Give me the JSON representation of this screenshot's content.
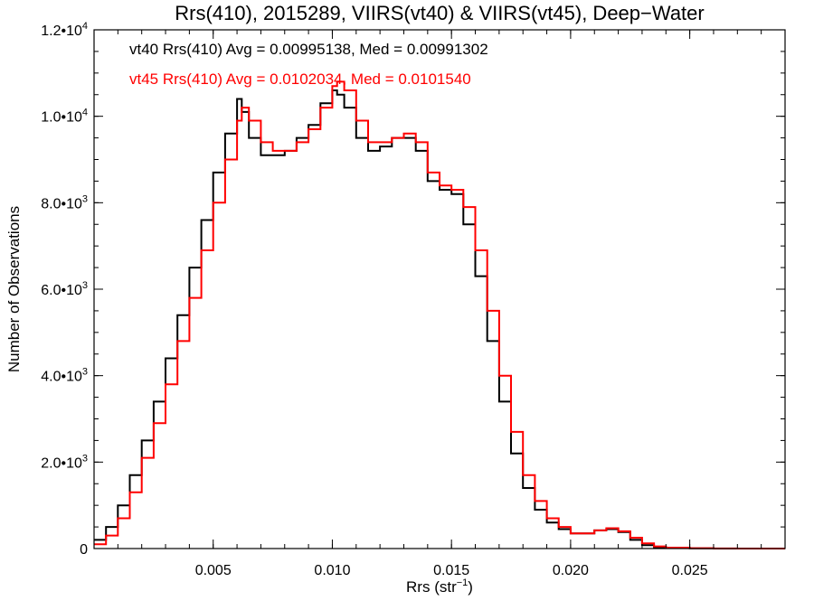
{
  "chart_data": {
    "type": "line",
    "title": "Rrs(410), 2015289, VIIRS(vt40) & VIIRS(vt45), Deep−Water",
    "xlabel": "Rrs (str",
    "xlabel_sup": "−1",
    "xlabel_close": ")",
    "ylabel": "Number of Observations",
    "xlim": [
      0.0,
      0.029
    ],
    "ylim": [
      0,
      12000
    ],
    "grid": false,
    "x_ticks": [
      {
        "value": 0.005,
        "label": "0.005"
      },
      {
        "value": 0.01,
        "label": "0.010"
      },
      {
        "value": 0.015,
        "label": "0.015"
      },
      {
        "value": 0.02,
        "label": "0.020"
      },
      {
        "value": 0.025,
        "label": "0.025"
      }
    ],
    "y_ticks": [
      {
        "value": 0,
        "mant": "0",
        "exp": ""
      },
      {
        "value": 2000,
        "mant": "2.0•10",
        "exp": "3"
      },
      {
        "value": 4000,
        "mant": "4.0•10",
        "exp": "3"
      },
      {
        "value": 6000,
        "mant": "6.0•10",
        "exp": "3"
      },
      {
        "value": 8000,
        "mant": "8.0•10",
        "exp": "3"
      },
      {
        "value": 10000,
        "mant": "1.0•10",
        "exp": "4"
      },
      {
        "value": 12000,
        "mant": "1.2•10",
        "exp": "4"
      }
    ],
    "annotations": [
      {
        "text": "vt40 Rrs(410) Avg = 0.00995138, Med = 0.00991302",
        "color": "#000000"
      },
      {
        "text": "vt45 Rrs(410) Avg = 0.0102034, Med = 0.0101540",
        "color": "#ff0000"
      }
    ],
    "series": [
      {
        "color": "#000000",
        "x": [
          0.0,
          0.0005,
          0.001,
          0.0015,
          0.002,
          0.0025,
          0.003,
          0.0035,
          0.004,
          0.0045,
          0.005,
          0.0055,
          0.006,
          0.0062,
          0.0065,
          0.007,
          0.0075,
          0.008,
          0.0085,
          0.009,
          0.0095,
          0.01,
          0.0102,
          0.0105,
          0.011,
          0.0115,
          0.012,
          0.0125,
          0.013,
          0.0135,
          0.014,
          0.0145,
          0.015,
          0.0155,
          0.016,
          0.0165,
          0.017,
          0.0175,
          0.018,
          0.0185,
          0.019,
          0.0195,
          0.02,
          0.0205,
          0.021,
          0.0215,
          0.022,
          0.0225,
          0.023,
          0.0235,
          0.024,
          0.025,
          0.026,
          0.027,
          0.028,
          0.029
        ],
        "y": [
          200,
          500,
          1000,
          1700,
          2500,
          3400,
          4400,
          5400,
          6500,
          7600,
          8700,
          9600,
          10400,
          10100,
          9500,
          9100,
          9100,
          9200,
          9500,
          9800,
          10300,
          10600,
          10500,
          10200,
          9500,
          9200,
          9300,
          9500,
          9500,
          9200,
          8500,
          8300,
          8200,
          7500,
          6300,
          4800,
          3400,
          2200,
          1400,
          900,
          600,
          450,
          350,
          350,
          420,
          450,
          380,
          200,
          80,
          30,
          10,
          5,
          0,
          0,
          0,
          0
        ]
      },
      {
        "color": "#ff0000",
        "x": [
          0.0,
          0.0005,
          0.001,
          0.0015,
          0.002,
          0.0025,
          0.003,
          0.0035,
          0.004,
          0.0045,
          0.005,
          0.0055,
          0.006,
          0.0062,
          0.0065,
          0.007,
          0.0075,
          0.008,
          0.0085,
          0.009,
          0.0095,
          0.01,
          0.0102,
          0.0105,
          0.011,
          0.0115,
          0.012,
          0.0125,
          0.013,
          0.0135,
          0.014,
          0.0145,
          0.015,
          0.0155,
          0.016,
          0.0165,
          0.017,
          0.0175,
          0.018,
          0.0185,
          0.019,
          0.0195,
          0.02,
          0.0205,
          0.021,
          0.0215,
          0.022,
          0.0225,
          0.023,
          0.0235,
          0.024,
          0.025,
          0.026,
          0.027,
          0.028,
          0.029
        ],
        "y": [
          100,
          300,
          700,
          1300,
          2100,
          2900,
          3800,
          4800,
          5800,
          6900,
          8000,
          9000,
          9900,
          10200,
          9900,
          9400,
          9200,
          9200,
          9400,
          9700,
          10200,
          10700,
          10800,
          10600,
          9900,
          9400,
          9400,
          9500,
          9600,
          9400,
          8700,
          8400,
          8300,
          7900,
          6900,
          5500,
          4000,
          2700,
          1700,
          1100,
          700,
          500,
          350,
          350,
          420,
          470,
          400,
          250,
          120,
          50,
          20,
          8,
          3,
          1,
          0,
          0
        ]
      }
    ]
  }
}
